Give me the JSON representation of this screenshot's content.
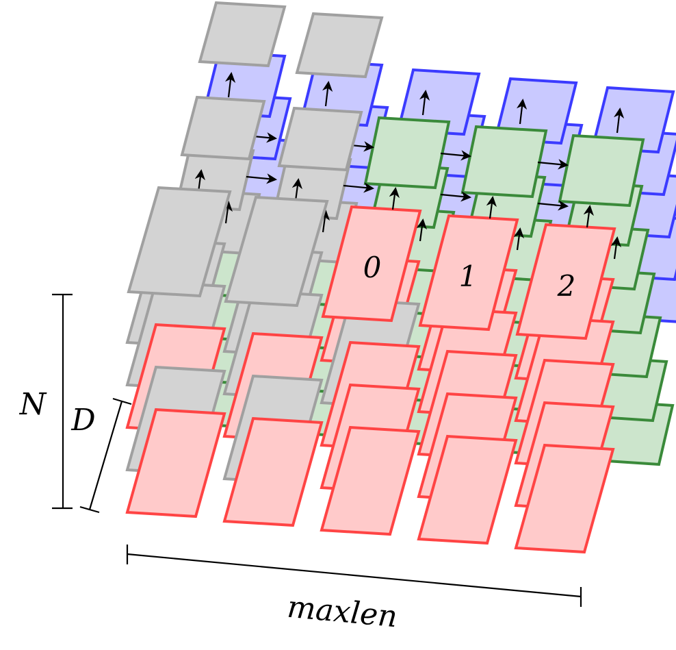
{
  "labels": {
    "n": "N",
    "d": "D",
    "maxlen": "maxlen",
    "token_0": "0",
    "token_1": "1",
    "token_2": "2"
  },
  "colors": {
    "red_fill": "#ffcaca",
    "red_stroke": "#ff4444",
    "green_fill": "#cce5cc",
    "green_stroke": "#3a8a3a",
    "blue_fill": "#c9c9ff",
    "blue_stroke": "#3b3bff",
    "gray_fill": "#d3d3d3",
    "gray_stroke": "#a0a0a0"
  },
  "dimensions": {
    "columns": 5,
    "sequence_rows": 5,
    "hidden_layers": 2
  }
}
